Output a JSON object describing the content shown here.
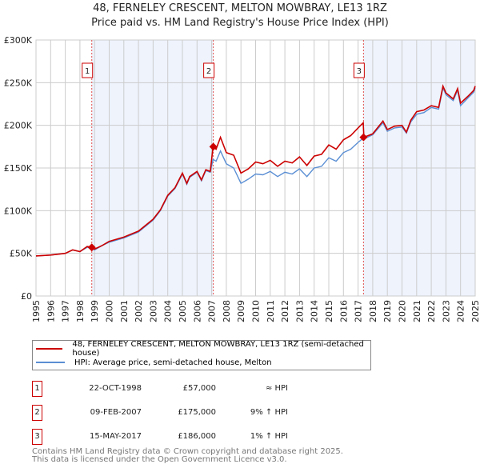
{
  "chart_data": {
    "type": "line",
    "title": "48, FERNELEY CRESCENT, MELTON MOWBRAY, LE13 1RZ",
    "subtitle": "Price paid vs. HM Land Registry's House Price Index (HPI)",
    "xlim": [
      1995,
      2025
    ],
    "ylim": [
      0,
      300000
    ],
    "ytick_labels": [
      "£0",
      "£50K",
      "£100K",
      "£150K",
      "£200K",
      "£250K",
      "£300K"
    ],
    "ytick_values": [
      0,
      50000,
      100000,
      150000,
      200000,
      250000,
      300000
    ],
    "xtick_labels": [
      "1995",
      "1996",
      "1997",
      "1998",
      "1999",
      "2000",
      "2001",
      "2002",
      "2003",
      "2004",
      "2005",
      "2006",
      "2007",
      "2008",
      "2009",
      "2010",
      "2011",
      "2012",
      "2013",
      "2014",
      "2015",
      "2016",
      "2017",
      "2018",
      "2019",
      "2020",
      "2021",
      "2022",
      "2023",
      "2024",
      "2025"
    ],
    "grid": true,
    "colors": {
      "property": "#cc0000",
      "hpi": "#5b8fd4",
      "shade": "#eef3fc",
      "marker_line": "#e05050"
    },
    "series": [
      {
        "name": "48, FERNELEY CRESCENT, MELTON MOWBRAY, LE13 1RZ (semi-detached house)",
        "key": "property",
        "x": [
          1995,
          1996,
          1997,
          1997.5,
          1998,
          1998.5,
          1998.8,
          1999,
          1999.5,
          2000,
          2001,
          2002,
          2003,
          2003.5,
          2004,
          2004.5,
          2005,
          2005.3,
          2005.5,
          2006,
          2006.3,
          2006.6,
          2006.9,
          2007.1,
          2007.3,
          2007.6,
          2008,
          2008.5,
          2009,
          2009.5,
          2010,
          2010.5,
          2011,
          2011.5,
          2012,
          2012.5,
          2013,
          2013.5,
          2014,
          2014.5,
          2015,
          2015.5,
          2016,
          2016.5,
          2017,
          2017.35,
          2017.4,
          2018,
          2018.7,
          2019,
          2019.5,
          2020,
          2020.3,
          2020.6,
          2021,
          2021.5,
          2022,
          2022.5,
          2022.8,
          2023,
          2023.5,
          2023.8,
          2024,
          2024.5,
          2024.9,
          2025
        ],
        "y": [
          47000,
          48000,
          50000,
          54000,
          52000,
          58000,
          57000,
          55000,
          59000,
          64000,
          69000,
          76000,
          90000,
          101000,
          118000,
          127000,
          144000,
          132000,
          140000,
          146000,
          136000,
          148000,
          146000,
          175000,
          172000,
          186000,
          168000,
          165000,
          144000,
          149000,
          157000,
          155000,
          159000,
          152000,
          158000,
          156000,
          163000,
          153000,
          164000,
          166000,
          177000,
          172000,
          183000,
          188000,
          197000,
          203000,
          186000,
          190000,
          205000,
          195000,
          199000,
          200000,
          192000,
          206000,
          216000,
          218000,
          223000,
          221000,
          246000,
          238000,
          231000,
          243000,
          226000,
          234000,
          241000,
          246000
        ]
      },
      {
        "name": "HPI: Average price, semi-detached house, Melton",
        "key": "hpi",
        "x": [
          1995,
          1996,
          1997,
          1997.5,
          1998,
          1998.5,
          1998.8,
          1999,
          1999.5,
          2000,
          2001,
          2002,
          2003,
          2003.5,
          2004,
          2004.5,
          2005,
          2005.3,
          2005.5,
          2006,
          2006.3,
          2006.6,
          2006.9,
          2007.1,
          2007.3,
          2007.6,
          2008,
          2008.5,
          2009,
          2009.5,
          2010,
          2010.5,
          2011,
          2011.5,
          2012,
          2012.5,
          2013,
          2013.5,
          2014,
          2014.5,
          2015,
          2015.5,
          2016,
          2016.5,
          2017,
          2017.35,
          2017.4,
          2018,
          2018.7,
          2019,
          2019.5,
          2020,
          2020.3,
          2020.6,
          2021,
          2021.5,
          2022,
          2022.5,
          2022.8,
          2023,
          2023.5,
          2023.8,
          2024,
          2024.5,
          2024.9,
          2025
        ],
        "y": [
          47000,
          48000,
          50000,
          54000,
          52000,
          57000,
          56000,
          54000,
          59000,
          63000,
          68000,
          75000,
          89000,
          100000,
          117000,
          126000,
          143000,
          131000,
          139000,
          145000,
          135000,
          147000,
          145000,
          160000,
          158000,
          170000,
          155000,
          150000,
          132000,
          137000,
          143000,
          142000,
          146000,
          140000,
          145000,
          143000,
          149000,
          140000,
          150000,
          152000,
          162000,
          158000,
          168000,
          172000,
          180000,
          185000,
          184000,
          189000,
          203000,
          193000,
          197000,
          198000,
          191000,
          204000,
          213000,
          215000,
          221000,
          219000,
          244000,
          236000,
          229000,
          241000,
          223000,
          232000,
          239000,
          244000
        ]
      }
    ],
    "sales": [
      {
        "label": "1",
        "x": 1998.81,
        "price": 57000
      },
      {
        "label": "2",
        "x": 2007.11,
        "price": 175000
      },
      {
        "label": "3",
        "x": 2017.37,
        "price": 186000
      }
    ]
  },
  "legend": {
    "property": "48, FERNELEY CRESCENT, MELTON MOWBRAY, LE13 1RZ (semi-detached house)",
    "hpi": "HPI: Average price, semi-detached house, Melton"
  },
  "transactions": [
    {
      "num": "1",
      "date": "22-OCT-1998",
      "price": "£57,000",
      "rel": "≈ HPI"
    },
    {
      "num": "2",
      "date": "09-FEB-2007",
      "price": "£175,000",
      "rel": "9% ↑ HPI"
    },
    {
      "num": "3",
      "date": "15-MAY-2017",
      "price": "£186,000",
      "rel": "1% ↑ HPI"
    }
  ],
  "footer": {
    "line1": "Contains HM Land Registry data © Crown copyright and database right 2025.",
    "line2": "This data is licensed under the Open Government Licence v3.0."
  }
}
